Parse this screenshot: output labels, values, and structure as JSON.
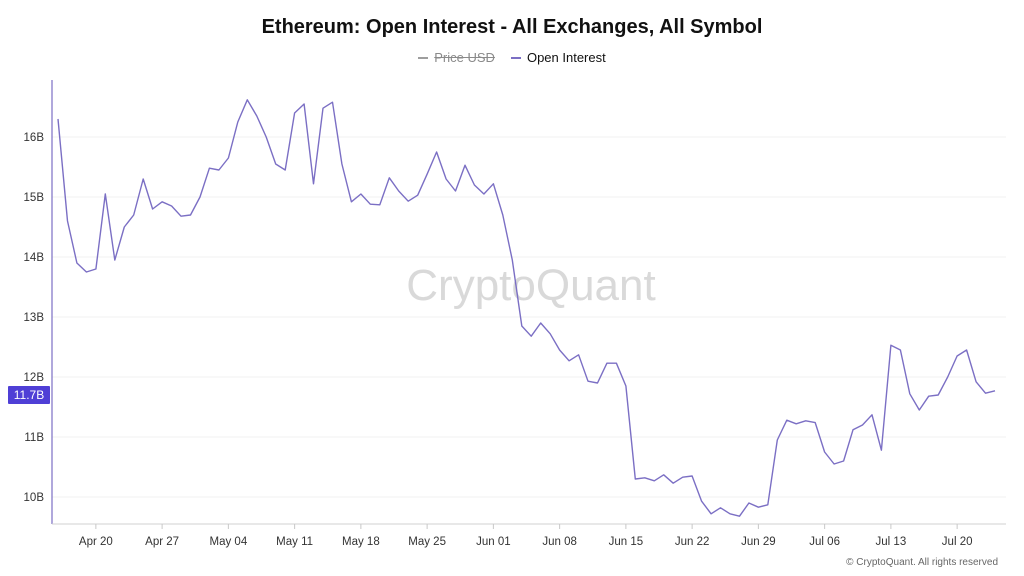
{
  "chart_data": {
    "type": "line",
    "title": "Ethereum: Open Interest - All Exchanges, All Symbol",
    "legend": [
      {
        "name": "Price USD",
        "color": "#9e9e9e",
        "hidden": true
      },
      {
        "name": "Open Interest",
        "color": "#7b6fc4",
        "hidden": false
      }
    ],
    "watermark": "CryptoQuant",
    "copyright": "© CryptoQuant. All rights reserved",
    "current_value_label": "11.7B",
    "current_value": 11.7,
    "accent_color": "#4f3fd6",
    "y_unit": "B",
    "ylim": [
      9.55,
      16.95
    ],
    "y_ticks": [
      {
        "value": 10,
        "label": "10B"
      },
      {
        "value": 11,
        "label": "11B"
      },
      {
        "value": 12,
        "label": "12B"
      },
      {
        "value": 13,
        "label": "13B"
      },
      {
        "value": 14,
        "label": "14B"
      },
      {
        "value": 15,
        "label": "15B"
      },
      {
        "value": 16,
        "label": "16B"
      }
    ],
    "x_ticks": [
      {
        "index": 4,
        "label": "Apr 20"
      },
      {
        "index": 11,
        "label": "Apr 27"
      },
      {
        "index": 18,
        "label": "May 04"
      },
      {
        "index": 25,
        "label": "May 11"
      },
      {
        "index": 32,
        "label": "May 18"
      },
      {
        "index": 39,
        "label": "May 25"
      },
      {
        "index": 46,
        "label": "Jun 01"
      },
      {
        "index": 53,
        "label": "Jun 08"
      },
      {
        "index": 60,
        "label": "Jun 15"
      },
      {
        "index": 67,
        "label": "Jun 22"
      },
      {
        "index": 74,
        "label": "Jun 29"
      },
      {
        "index": 81,
        "label": "Jul 06"
      },
      {
        "index": 88,
        "label": "Jul 13"
      },
      {
        "index": 95,
        "label": "Jul 20"
      }
    ],
    "series": [
      {
        "name": "Open Interest",
        "values": [
          16.3,
          14.6,
          13.9,
          13.75,
          13.8,
          15.05,
          13.95,
          14.5,
          14.7,
          15.3,
          14.8,
          14.92,
          14.85,
          14.68,
          14.7,
          15.0,
          15.48,
          15.45,
          15.65,
          16.25,
          16.62,
          16.35,
          16.0,
          15.55,
          15.45,
          16.4,
          16.55,
          15.22,
          16.48,
          16.58,
          15.55,
          14.92,
          15.05,
          14.88,
          14.87,
          15.32,
          15.1,
          14.93,
          15.03,
          15.38,
          15.75,
          15.3,
          15.1,
          15.53,
          15.2,
          15.05,
          15.22,
          14.7,
          13.95,
          12.85,
          12.68,
          12.9,
          12.72,
          12.45,
          12.27,
          12.37,
          11.93,
          11.9,
          12.23,
          12.23,
          11.85,
          10.3,
          10.32,
          10.27,
          10.37,
          10.23,
          10.33,
          10.35,
          9.93,
          9.72,
          9.82,
          9.72,
          9.68,
          9.9,
          9.83,
          9.87,
          10.95,
          11.28,
          11.22,
          11.27,
          11.24,
          10.75,
          10.55,
          10.6,
          11.12,
          11.2,
          11.37,
          10.78,
          12.53,
          12.45,
          11.72,
          11.45,
          11.68,
          11.7,
          12.0,
          12.35,
          12.45,
          11.92,
          11.73,
          11.77
        ]
      }
    ]
  }
}
